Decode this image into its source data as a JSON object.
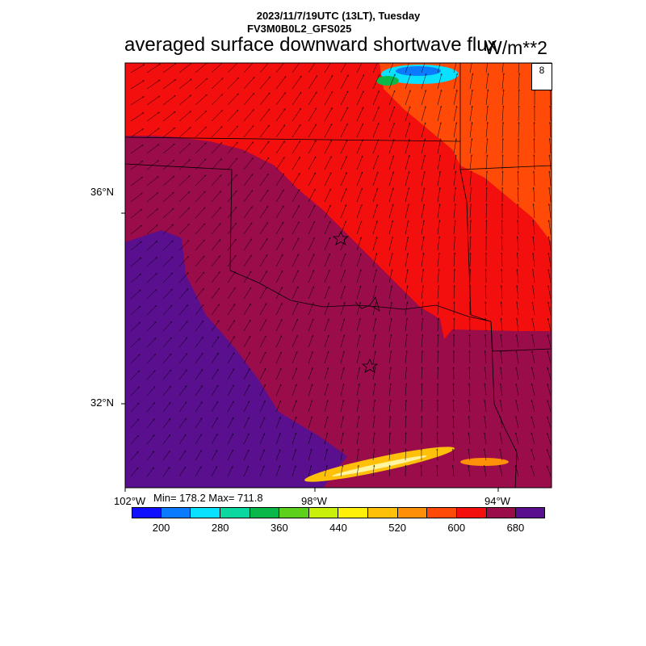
{
  "header": {
    "line1": "2023/11/7/19UTC (13LT), Tuesday",
    "line2": "FV3M0B0L2_GFS025",
    "title": "averaged surface downward shortwave flux",
    "units": "W/m**2"
  },
  "map": {
    "lat_labels": [
      "36°N",
      "32°N"
    ],
    "lon_labels": [
      "102°W",
      "98°W",
      "94°W"
    ],
    "stats": "Min= 178.2 Max= 711.8",
    "vector_reference": "8",
    "colors": {
      "dark_purple": "#5a0f8f",
      "maroon": "#9a0c4a",
      "red": "#f40f0f",
      "orange_red": "#ff4a08"
    }
  },
  "colorbar": {
    "labels": [
      "200",
      "280",
      "360",
      "440",
      "520",
      "600",
      "680"
    ],
    "colors": [
      "#1010ff",
      "#0a7bff",
      "#0ae0ff",
      "#0ad8a0",
      "#0ab84a",
      "#5cd01a",
      "#c8f00a",
      "#fff00a",
      "#ffc00a",
      "#ff9008",
      "#ff4a08",
      "#f40f0f",
      "#9a0c4a",
      "#5a0f8f"
    ]
  }
}
